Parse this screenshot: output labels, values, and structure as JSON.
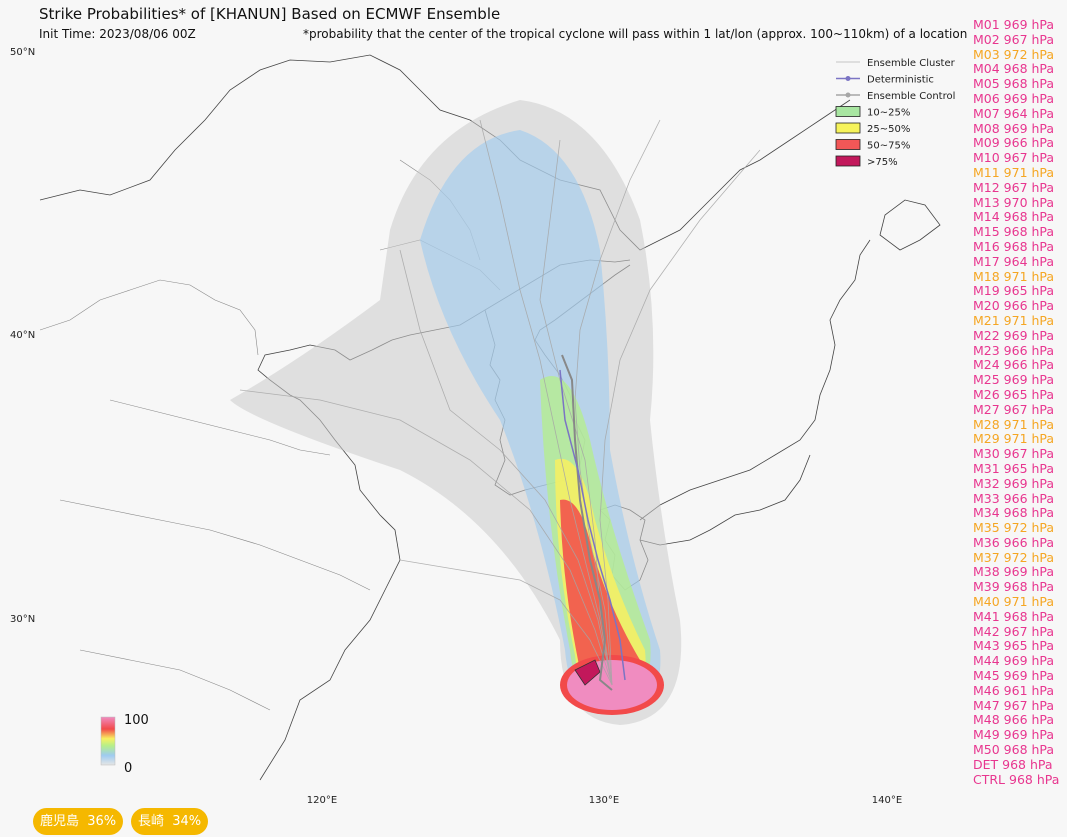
{
  "header": {
    "title": "Strike Probabilities* of [KHANUN] Based on ECMWF Ensemble",
    "init_time": "Init Time: 2023/08/06 00Z",
    "note": "*probability that the center of the tropical cyclone will pass within 1 lat/lon (approx. 100~110km) of a location"
  },
  "legend": {
    "items": [
      {
        "label": "Ensemble Cluster",
        "color": "#b5b5b5"
      },
      {
        "label": "Deterministic",
        "color": "#7b74c4"
      },
      {
        "label": "Ensemble Control",
        "color": "#a6a6a6"
      },
      {
        "label": "10~25%",
        "color": "#a8e6a1"
      },
      {
        "label": "25~50%",
        "color": "#f6f35a"
      },
      {
        "label": "50~75%",
        "color": "#f25757"
      },
      {
        "label": ">75%",
        "color": "#c2185b"
      }
    ]
  },
  "map": {
    "lat_labels": [
      "50°N",
      "40°N",
      "30°N"
    ],
    "lon_labels": [
      "120°E",
      "130°E",
      "140°E"
    ]
  },
  "colorbar": {
    "max_label": "100",
    "min_label": "0"
  },
  "members": [
    {
      "text": "M01 969 hPa",
      "color": "#e8368f"
    },
    {
      "text": "M02 967 hPa",
      "color": "#e8368f"
    },
    {
      "text": "M03 972 hPa",
      "color": "#f5a623"
    },
    {
      "text": "M04 968 hPa",
      "color": "#e8368f"
    },
    {
      "text": "M05 968 hPa",
      "color": "#e8368f"
    },
    {
      "text": "M06 969 hPa",
      "color": "#e8368f"
    },
    {
      "text": "M07 964 hPa",
      "color": "#e8368f"
    },
    {
      "text": "M08 969 hPa",
      "color": "#e8368f"
    },
    {
      "text": "M09 966 hPa",
      "color": "#e8368f"
    },
    {
      "text": "M10 967 hPa",
      "color": "#e8368f"
    },
    {
      "text": "M11 971 hPa",
      "color": "#f5a623"
    },
    {
      "text": "M12 967 hPa",
      "color": "#e8368f"
    },
    {
      "text": "M13 970 hPa",
      "color": "#e8368f"
    },
    {
      "text": "M14 968 hPa",
      "color": "#e8368f"
    },
    {
      "text": "M15 968 hPa",
      "color": "#e8368f"
    },
    {
      "text": "M16 968 hPa",
      "color": "#e8368f"
    },
    {
      "text": "M17 964 hPa",
      "color": "#e8368f"
    },
    {
      "text": "M18 971 hPa",
      "color": "#f5a623"
    },
    {
      "text": "M19 965 hPa",
      "color": "#e8368f"
    },
    {
      "text": "M20 966 hPa",
      "color": "#e8368f"
    },
    {
      "text": "M21 971 hPa",
      "color": "#f5a623"
    },
    {
      "text": "M22 969 hPa",
      "color": "#e8368f"
    },
    {
      "text": "M23 966 hPa",
      "color": "#e8368f"
    },
    {
      "text": "M24 966 hPa",
      "color": "#e8368f"
    },
    {
      "text": "M25 969 hPa",
      "color": "#e8368f"
    },
    {
      "text": "M26 965 hPa",
      "color": "#e8368f"
    },
    {
      "text": "M27 967 hPa",
      "color": "#e8368f"
    },
    {
      "text": "M28 971 hPa",
      "color": "#f5a623"
    },
    {
      "text": "M29 971 hPa",
      "color": "#f5a623"
    },
    {
      "text": "M30 967 hPa",
      "color": "#e8368f"
    },
    {
      "text": "M31 965 hPa",
      "color": "#e8368f"
    },
    {
      "text": "M32 969 hPa",
      "color": "#e8368f"
    },
    {
      "text": "M33 966 hPa",
      "color": "#e8368f"
    },
    {
      "text": "M34 968 hPa",
      "color": "#e8368f"
    },
    {
      "text": "M35 972 hPa",
      "color": "#f5a623"
    },
    {
      "text": "M36 966 hPa",
      "color": "#e8368f"
    },
    {
      "text": "M37 972 hPa",
      "color": "#f5a623"
    },
    {
      "text": "M38 969 hPa",
      "color": "#e8368f"
    },
    {
      "text": "M39 968 hPa",
      "color": "#e8368f"
    },
    {
      "text": "M40 971 hPa",
      "color": "#f5a623"
    },
    {
      "text": "M41 968 hPa",
      "color": "#e8368f"
    },
    {
      "text": "M42 967 hPa",
      "color": "#e8368f"
    },
    {
      "text": "M43 965 hPa",
      "color": "#e8368f"
    },
    {
      "text": "M44 969 hPa",
      "color": "#e8368f"
    },
    {
      "text": "M45 969 hPa",
      "color": "#e8368f"
    },
    {
      "text": "M46 961 hPa",
      "color": "#e8368f"
    },
    {
      "text": "M47 967 hPa",
      "color": "#e8368f"
    },
    {
      "text": "M48 966 hPa",
      "color": "#e8368f"
    },
    {
      "text": "M49 969 hPa",
      "color": "#e8368f"
    },
    {
      "text": "M50 968 hPa",
      "color": "#e8368f"
    },
    {
      "text": "DET 968 hPa",
      "color": "#e8368f"
    },
    {
      "text": "CTRL 968 hPa",
      "color": "#e8368f"
    }
  ],
  "badges": [
    {
      "text": "鹿児島  36%"
    },
    {
      "text": "長崎  34%"
    }
  ]
}
